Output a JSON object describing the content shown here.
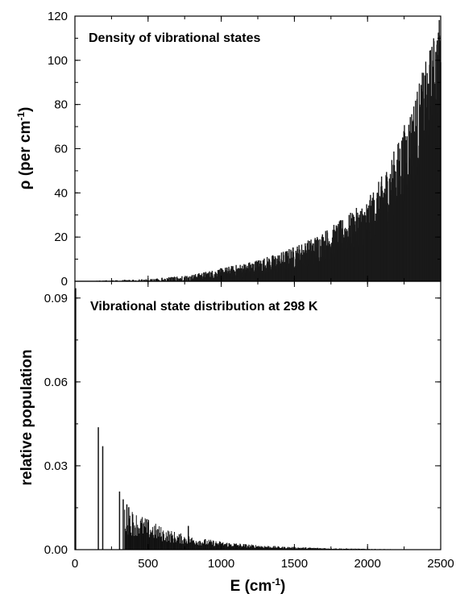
{
  "chart_data": [
    {
      "type": "bar",
      "panel": "top",
      "title": "Density of vibrational states",
      "ylabel": "ρ (per cm-1)",
      "ylabel_main": "ρ (per cm",
      "ylabel_sup": "-1",
      "ylabel_close": ")",
      "xlabel": "",
      "xlim": [
        0,
        2500
      ],
      "ylim": [
        0,
        120
      ],
      "yticks": [
        0,
        20,
        40,
        60,
        80,
        100,
        120
      ],
      "ytick_labels": [
        "0",
        "20",
        "40",
        "60",
        "80",
        "100",
        "120"
      ],
      "yminor_step": 10,
      "xticks": [
        0,
        500,
        1000,
        1500,
        2000,
        2500
      ],
      "xminor_step": 250,
      "grid": false,
      "trend_x": [
        0,
        500,
        800,
        1000,
        1200,
        1400,
        1600,
        1800,
        2000,
        2100,
        2200,
        2300,
        2400,
        2500
      ],
      "trend_upper": [
        0,
        1,
        3,
        6,
        9,
        13,
        19,
        27,
        37,
        48,
        62,
        80,
        100,
        122
      ],
      "trend_lower": [
        0,
        0,
        0.4,
        1,
        2,
        4,
        7,
        11,
        17,
        23,
        31,
        42,
        58,
        78
      ],
      "bin_width": 2
    },
    {
      "type": "bar",
      "panel": "bottom",
      "title": "Vibrational state distribution at 298 K",
      "ylabel": "relative population",
      "xlabel": "E (cm-1)",
      "xlabel_main": "E (cm",
      "xlabel_sup": "-1",
      "xlabel_close": ")",
      "xlim": [
        0,
        2500
      ],
      "ylim": [
        0,
        0.096
      ],
      "yticks": [
        0,
        0.03,
        0.06,
        0.09
      ],
      "ytick_labels": [
        "0.00",
        "0.03",
        "0.06",
        "0.09"
      ],
      "yminor_step": 0.015,
      "xticks": [
        0,
        500,
        1000,
        1500,
        2000,
        2500
      ],
      "xtick_labels": [
        "0",
        "500",
        "1000",
        "1500",
        "2000",
        "2500"
      ],
      "xminor_step": 250,
      "grid": false,
      "sticks": [
        {
          "x": 1,
          "y": 0.093
        },
        {
          "x": 5,
          "y": 0.0935
        },
        {
          "x": 160,
          "y": 0.0438
        },
        {
          "x": 190,
          "y": 0.037
        },
        {
          "x": 305,
          "y": 0.0208
        },
        {
          "x": 330,
          "y": 0.018
        },
        {
          "x": 355,
          "y": 0.0162
        },
        {
          "x": 368,
          "y": 0.0152
        },
        {
          "x": 775,
          "y": 0.0085
        }
      ],
      "envelope_x": [
        340,
        400,
        500,
        600,
        700,
        800,
        900,
        1000,
        1200,
        1400,
        1600,
        1800,
        2000,
        2200,
        2500
      ],
      "envelope_y": [
        0.016,
        0.014,
        0.011,
        0.008,
        0.0062,
        0.0048,
        0.0038,
        0.003,
        0.0019,
        0.0012,
        0.0008,
        0.0005,
        0.0003,
        0.00015,
        5e-05
      ]
    }
  ]
}
